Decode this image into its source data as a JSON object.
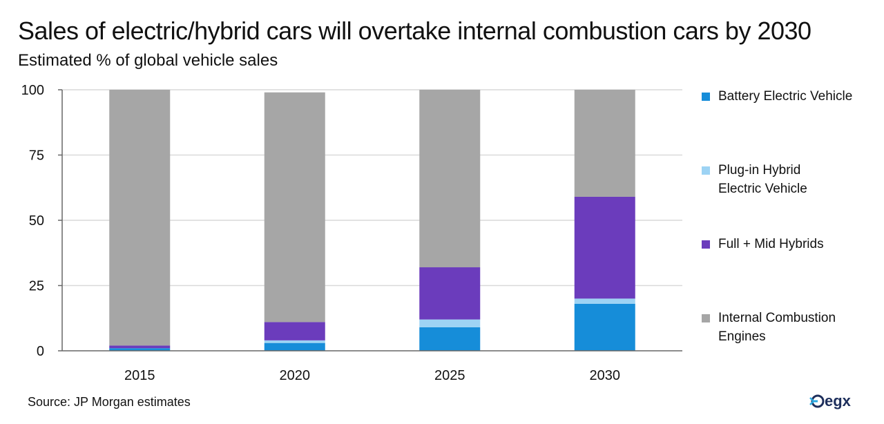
{
  "title": "Sales of electric/hybrid cars will overtake internal combustion cars by 2030",
  "subtitle": "Estimated % of global vehicle sales",
  "source": "Source: JP Morgan estimates",
  "logo_text": "egx",
  "chart_data": {
    "type": "bar",
    "stacked": true,
    "categories": [
      "2015",
      "2020",
      "2025",
      "2030"
    ],
    "ylim": [
      0,
      100
    ],
    "yticks": [
      0,
      25,
      50,
      75,
      100
    ],
    "grid": true,
    "legend_position": "right",
    "series": [
      {
        "name": "Battery Electric Vehicle",
        "color": "#168DD9",
        "values": [
          1,
          3,
          9,
          18
        ]
      },
      {
        "name": "Plug-in Hybrid Electric Vehicle",
        "color": "#9DD3F4",
        "values": [
          0,
          1,
          3,
          2
        ]
      },
      {
        "name": "Full + Mid Hybrids",
        "color": "#6B3CBC",
        "values": [
          1,
          7,
          20,
          39
        ]
      },
      {
        "name": "Internal Combustion Engines",
        "color": "#A6A6A6",
        "values": [
          98,
          88,
          68,
          41
        ]
      }
    ]
  }
}
